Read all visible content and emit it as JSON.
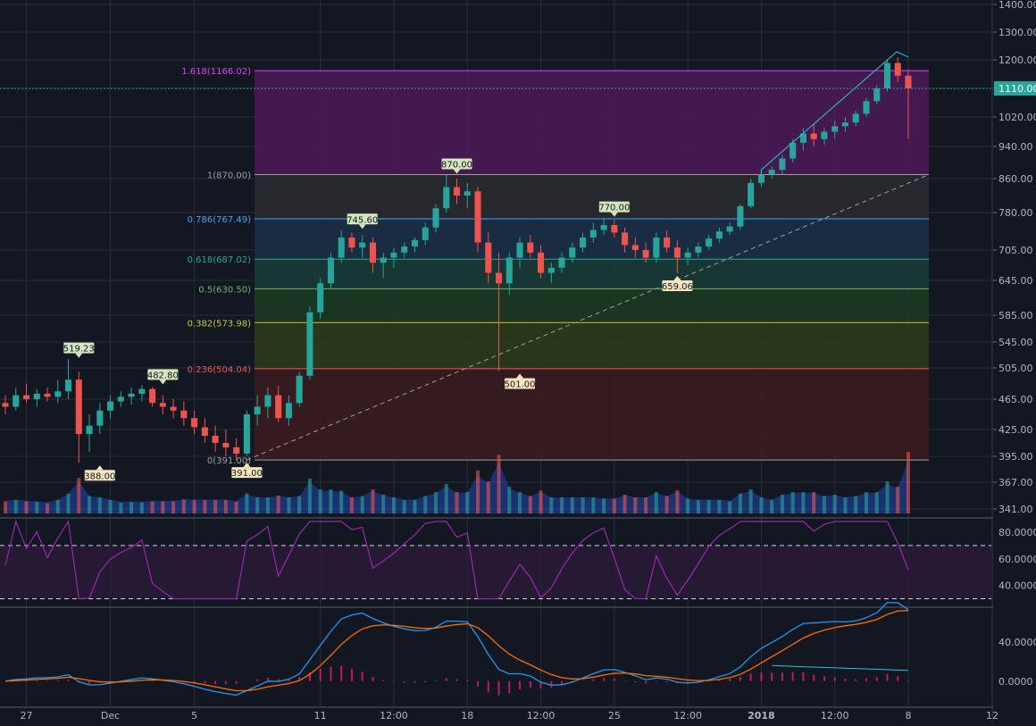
{
  "theme": {
    "background": "#131722",
    "grid": "#2a2e39",
    "axis_text": "#b2b5be",
    "up": "#26a69a",
    "down": "#ef5350",
    "rsi": "#9c27b0",
    "macd": "#2196f3",
    "signal": "#ff6d00",
    "hist": "#e91e63",
    "trend": "#26c6da",
    "last_price_bg": "#26a69a"
  },
  "x_axis": {
    "labels": [
      {
        "text": "27",
        "i": 2
      },
      {
        "text": "Dec",
        "i": 10
      },
      {
        "text": "5",
        "i": 18
      },
      {
        "text": "11",
        "i": 30
      },
      {
        "text": "12:00",
        "i": 37
      },
      {
        "text": "18",
        "i": 44
      },
      {
        "text": "12:00",
        "i": 51
      },
      {
        "text": "25",
        "i": 58
      },
      {
        "text": "12:00",
        "i": 65
      },
      {
        "text": "2018",
        "i": 72
      },
      {
        "text": "12:00",
        "i": 79
      },
      {
        "text": "8",
        "i": 86
      },
      {
        "text": "12",
        "i": 94
      }
    ]
  },
  "price_axis": {
    "ticks": [
      "1400.00",
      "1300.00",
      "1200.00",
      "1110.00",
      "1020.00",
      "940.00",
      "860.00",
      "780.00",
      "705.00",
      "645.00",
      "585.00",
      "545.00",
      "505.00",
      "465.00",
      "425.00",
      "395.00",
      "367.00",
      "341.00"
    ],
    "last_price": "1110.00"
  },
  "rsi_axis": {
    "ticks": [
      "80.0000",
      "60.0000",
      "40.0000"
    ]
  },
  "macd_axis": {
    "ticks": [
      "40.0000",
      "0.0000"
    ]
  },
  "fibonacci": {
    "levels": [
      {
        "label": "1.618(1166.02)",
        "price": 1166.02,
        "color": "#e040fb",
        "fill": "#4a1a55"
      },
      {
        "label": "1(870.00)",
        "price": 870.0,
        "color": "#9e9e9e",
        "fill": "#2a2a30"
      },
      {
        "label": "0.786(767.49)",
        "price": 767.49,
        "color": "#42a5f5",
        "fill": "#1c2f45"
      },
      {
        "label": "0.618(687.02)",
        "price": 687.02,
        "color": "#26a69a",
        "fill": "#1a3a35"
      },
      {
        "label": "0.5(630.50)",
        "price": 630.5,
        "color": "#66bb6a",
        "fill": "#1c3a22"
      },
      {
        "label": "0.382(573.98)",
        "price": 573.98,
        "color": "#c0ca33",
        "fill": "#2e3a1c"
      },
      {
        "label": "0.236(504.04)",
        "price": 504.04,
        "color": "#ef5350",
        "fill": "#3a1c1f"
      },
      {
        "label": "0(391.00)",
        "price": 391.0,
        "color": "#9e9e9e",
        "fill": "#3a1c1f"
      }
    ]
  },
  "price_labels": [
    {
      "text": "519.23",
      "i": 7,
      "price": 519.23,
      "dir": "up"
    },
    {
      "text": "388.00",
      "i": 9,
      "price": 388.0,
      "dir": "down"
    },
    {
      "text": "482.80",
      "i": 15,
      "price": 482.8,
      "dir": "up"
    },
    {
      "text": "391.00",
      "i": 23,
      "price": 391.0,
      "dir": "down"
    },
    {
      "text": "745.60",
      "i": 34,
      "price": 745.6,
      "dir": "up"
    },
    {
      "text": "870.00",
      "i": 43,
      "price": 870.0,
      "dir": "up"
    },
    {
      "text": "501.00",
      "i": 49,
      "price": 501.0,
      "dir": "down"
    },
    {
      "text": "770.00",
      "i": 58,
      "price": 770.0,
      "dir": "up"
    },
    {
      "text": "659.06",
      "i": 64,
      "price": 659.06,
      "dir": "down"
    }
  ],
  "chart_data": {
    "type": "candlestick",
    "symbol": "",
    "series": [
      {
        "name": "price",
        "candles": [
          [
            460,
            470,
            445,
            455
          ],
          [
            455,
            480,
            450,
            470
          ],
          [
            470,
            485,
            460,
            465
          ],
          [
            465,
            478,
            455,
            472
          ],
          [
            472,
            480,
            462,
            468
          ],
          [
            468,
            490,
            460,
            475
          ],
          [
            475,
            519,
            465,
            490
          ],
          [
            490,
            500,
            388,
            420
          ],
          [
            420,
            445,
            400,
            430
          ],
          [
            430,
            460,
            420,
            450
          ],
          [
            450,
            470,
            440,
            462
          ],
          [
            462,
            475,
            455,
            468
          ],
          [
            468,
            480,
            458,
            472
          ],
          [
            472,
            483,
            462,
            478
          ],
          [
            478,
            480,
            455,
            460
          ],
          [
            460,
            470,
            445,
            455
          ],
          [
            455,
            465,
            440,
            450
          ],
          [
            450,
            462,
            430,
            440
          ],
          [
            440,
            450,
            420,
            428
          ],
          [
            428,
            440,
            410,
            418
          ],
          [
            418,
            430,
            400,
            410
          ],
          [
            410,
            425,
            395,
            405
          ],
          [
            405,
            415,
            391,
            398
          ],
          [
            398,
            450,
            395,
            445
          ],
          [
            445,
            470,
            430,
            455
          ],
          [
            455,
            480,
            440,
            470
          ],
          [
            470,
            482,
            435,
            440
          ],
          [
            440,
            470,
            430,
            460
          ],
          [
            460,
            500,
            455,
            495
          ],
          [
            495,
            600,
            490,
            590
          ],
          [
            590,
            650,
            580,
            640
          ],
          [
            640,
            700,
            630,
            690
          ],
          [
            690,
            745,
            680,
            730
          ],
          [
            730,
            740,
            700,
            710
          ],
          [
            710,
            735,
            690,
            720
          ],
          [
            720,
            730,
            660,
            680
          ],
          [
            680,
            700,
            650,
            690
          ],
          [
            690,
            710,
            670,
            700
          ],
          [
            700,
            720,
            690,
            712
          ],
          [
            712,
            730,
            700,
            725
          ],
          [
            725,
            760,
            715,
            750
          ],
          [
            750,
            800,
            740,
            790
          ],
          [
            790,
            870,
            780,
            840
          ],
          [
            840,
            860,
            800,
            820
          ],
          [
            820,
            850,
            790,
            830
          ],
          [
            830,
            840,
            700,
            720
          ],
          [
            720,
            740,
            640,
            660
          ],
          [
            660,
            700,
            501,
            640
          ],
          [
            640,
            700,
            620,
            690
          ],
          [
            690,
            730,
            670,
            720
          ],
          [
            720,
            735,
            690,
            700
          ],
          [
            700,
            715,
            650,
            660
          ],
          [
            660,
            680,
            640,
            670
          ],
          [
            670,
            700,
            660,
            690
          ],
          [
            690,
            720,
            680,
            710
          ],
          [
            710,
            740,
            700,
            730
          ],
          [
            730,
            760,
            720,
            745
          ],
          [
            745,
            770,
            735,
            755
          ],
          [
            755,
            765,
            730,
            740
          ],
          [
            740,
            750,
            700,
            715
          ],
          [
            715,
            730,
            690,
            705
          ],
          [
            705,
            720,
            680,
            690
          ],
          [
            690,
            740,
            680,
            730
          ],
          [
            730,
            745,
            700,
            710
          ],
          [
            710,
            725,
            659,
            690
          ],
          [
            690,
            710,
            675,
            700
          ],
          [
            700,
            720,
            690,
            712
          ],
          [
            712,
            735,
            705,
            728
          ],
          [
            728,
            750,
            720,
            742
          ],
          [
            742,
            760,
            735,
            752
          ],
          [
            752,
            800,
            745,
            795
          ],
          [
            795,
            860,
            790,
            850
          ],
          [
            850,
            880,
            840,
            870
          ],
          [
            870,
            890,
            860,
            882
          ],
          [
            882,
            920,
            870,
            910
          ],
          [
            910,
            960,
            900,
            950
          ],
          [
            950,
            990,
            930,
            975
          ],
          [
            975,
            1000,
            940,
            960
          ],
          [
            960,
            990,
            945,
            980
          ],
          [
            980,
            1010,
            960,
            995
          ],
          [
            995,
            1020,
            980,
            1005
          ],
          [
            1005,
            1040,
            995,
            1030
          ],
          [
            1030,
            1080,
            1020,
            1070
          ],
          [
            1070,
            1120,
            1060,
            1110
          ],
          [
            1110,
            1200,
            1100,
            1190
          ],
          [
            1190,
            1210,
            1130,
            1150
          ],
          [
            1150,
            1170,
            960,
            1110
          ]
        ]
      }
    ]
  }
}
